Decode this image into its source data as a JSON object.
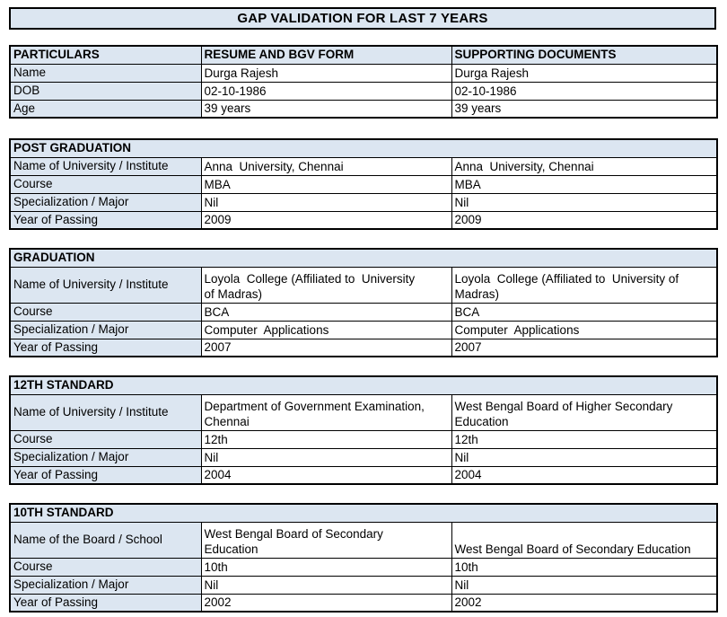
{
  "title": "GAP VALIDATION FOR LAST 7 YEARS",
  "colors": {
    "header_fill": "#dce6f1",
    "border": "#000000",
    "text": "#000000"
  },
  "tables": [
    {
      "name": "particulars",
      "columns": [
        "PARTICULARS",
        "RESUME AND BGV FORM",
        "SUPPORTING DOCUMENTS"
      ],
      "rows": [
        {
          "label": "Name",
          "resume": "Durga Rajesh",
          "supporting": "Durga Rajesh"
        },
        {
          "label": "DOB",
          "resume": "02-10-1986",
          "supporting": "02-10-1986"
        },
        {
          "label": "Age",
          "resume": "39 years",
          "supporting": "39 years"
        }
      ]
    },
    {
      "name": "post-graduation",
      "section": "POST GRADUATION",
      "rows": [
        {
          "label": "Name of University / Institute",
          "resume": "Anna  University, Chennai",
          "supporting": "Anna  University, Chennai"
        },
        {
          "label": "Course",
          "resume": "MBA",
          "supporting": "MBA"
        },
        {
          "label": "Specialization / Major",
          "resume": "Nil",
          "supporting": "Nil"
        },
        {
          "label": "Year of Passing",
          "resume": "2009",
          "supporting": "2009"
        }
      ]
    },
    {
      "name": "graduation",
      "section": "GRADUATION",
      "rows": [
        {
          "label": "Name of University / Institute",
          "resume": "Loyola  College (Affiliated to  University\nof Madras)",
          "supporting": "Loyola  College (Affiliated to  University of\nMadras)"
        },
        {
          "label": "Course",
          "resume": "BCA",
          "supporting": "BCA"
        },
        {
          "label": "Specialization / Major",
          "resume": "Computer  Applications",
          "supporting": "Computer  Applications"
        },
        {
          "label": "Year of Passing",
          "resume": "2007",
          "supporting": "2007"
        }
      ]
    },
    {
      "name": "12th-standard",
      "section": "12TH STANDARD",
      "rows": [
        {
          "label": "Name of University / Institute",
          "resume": "Department of Government Examination,\nChennai",
          "supporting": "West Bengal Board of Higher Secondary\nEducation"
        },
        {
          "label": "Course",
          "resume": "12th",
          "supporting": "12th"
        },
        {
          "label": "Specialization / Major",
          "resume": "Nil",
          "supporting": "Nil"
        },
        {
          "label": "Year of Passing",
          "resume": "2004",
          "supporting": "2004"
        }
      ]
    },
    {
      "name": "10th-standard",
      "section": "10TH STANDARD",
      "rows": [
        {
          "label": "Name of the Board / School",
          "resume": "West Bengal Board of Secondary\nEducation",
          "supporting": "West Bengal Board of Secondary Education"
        },
        {
          "label": "Course",
          "resume": "10th",
          "supporting": "10th"
        },
        {
          "label": "Specialization / Major",
          "resume": "Nil",
          "supporting": "Nil"
        },
        {
          "label": "Year of Passing",
          "resume": "2002",
          "supporting": "2002"
        }
      ]
    }
  ]
}
